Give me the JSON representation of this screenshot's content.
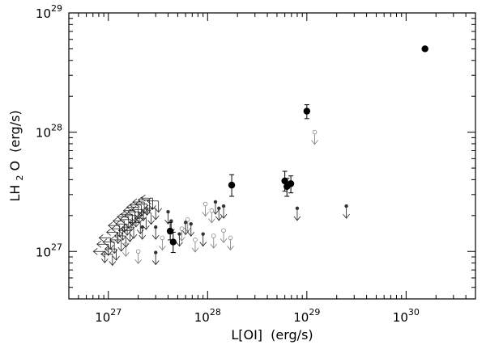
{
  "chart_data": {
    "type": "scatter",
    "xscale": "log",
    "yscale": "log",
    "xlim": [
      4e+26,
      5e+30
    ],
    "ylim": [
      4e+26,
      1e+29
    ],
    "xticks": [
      {
        "base": "10",
        "exp": "27",
        "value": 1e+27
      },
      {
        "base": "10",
        "exp": "28",
        "value": 1e+28
      },
      {
        "base": "10",
        "exp": "29",
        "value": 1e+29
      },
      {
        "base": "10",
        "exp": "30",
        "value": 1e+30
      }
    ],
    "yticks": [
      {
        "base": "10",
        "exp": "27",
        "value": 1e+27
      },
      {
        "base": "10",
        "exp": "28",
        "value": 1e+28
      },
      {
        "base": "10",
        "exp": "29",
        "value": 1e+29
      }
    ],
    "xlabel_main": "L[OI]",
    "xlabel_unit": "(erg/s)",
    "ylabel_main": "LH",
    "ylabel_sub": "2",
    "ylabel_main2": "O",
    "ylabel_unit": "(erg/s)",
    "colors": {
      "detection": "#000000",
      "upper_limit_black": "#333333",
      "upper_limit_gray": "#888888"
    },
    "detections": [
      {
        "x": 1.55e+30,
        "y": 5e+28
      },
      {
        "x": 1e+29,
        "y": 1.5e+28,
        "err": [
          1.3e+28,
          1.7e+28
        ]
      },
      {
        "x": 1.75e+28,
        "y": 3.6e+27,
        "err": [
          2.9e+27,
          4.4e+27
        ]
      },
      {
        "x": 6e+28,
        "y": 3.9e+27,
        "err": [
          3.2e+27,
          4.7e+27
        ]
      },
      {
        "x": 6.3e+28,
        "y": 3.5e+27,
        "err": [
          2.9e+27,
          4.1e+27
        ]
      },
      {
        "x": 6.9e+28,
        "y": 3.7e+27,
        "err": [
          3.1e+27,
          4.3e+27
        ]
      },
      {
        "x": 4.2e+27,
        "y": 1.48e+27,
        "err": [
          1.25e+27,
          1.75e+27
        ]
      },
      {
        "x": 4.5e+27,
        "y": 1.2e+27,
        "err": [
          9.8e+26,
          1.45e+27
        ]
      }
    ],
    "upper_limits_y": [
      {
        "x": 1.2e+29,
        "y": 1e+28,
        "marker": "open",
        "color": "gray"
      },
      {
        "x": 8e+28,
        "y": 2.3e+27,
        "marker": "filled",
        "color": "black"
      },
      {
        "x": 2.5e+29,
        "y": 2.4e+27,
        "marker": "filled",
        "color": "black"
      },
      {
        "x": 9.5e+27,
        "y": 2.5e+27,
        "marker": "open",
        "color": "gray"
      },
      {
        "x": 1.2e+28,
        "y": 2.6e+27,
        "marker": "filled",
        "color": "black"
      },
      {
        "x": 1.3e+28,
        "y": 2.3e+27,
        "marker": "filled",
        "color": "black"
      },
      {
        "x": 1.45e+28,
        "y": 2.4e+27,
        "marker": "filled",
        "color": "black"
      },
      {
        "x": 1.1e+28,
        "y": 2.2e+27,
        "marker": "open",
        "color": "gray"
      },
      {
        "x": 6.3e+27,
        "y": 1.85e+27,
        "marker": "open",
        "color": "gray"
      },
      {
        "x": 6.8e+27,
        "y": 1.7e+27,
        "marker": "filled",
        "color": "black"
      },
      {
        "x": 6e+27,
        "y": 1.75e+27,
        "marker": "filled",
        "color": "black"
      },
      {
        "x": 5.5e+27,
        "y": 1.55e+27,
        "marker": "open",
        "color": "gray"
      },
      {
        "x": 4e+27,
        "y": 2.15e+27,
        "marker": "filled",
        "color": "black"
      },
      {
        "x": 4.3e+27,
        "y": 1.8e+27,
        "marker": "filled",
        "color": "black"
      },
      {
        "x": 3e+27,
        "y": 1.6e+27,
        "marker": "filled",
        "color": "black"
      },
      {
        "x": 9e+27,
        "y": 1.4e+27,
        "marker": "filled",
        "color": "black"
      },
      {
        "x": 1.15e+28,
        "y": 1.35e+27,
        "marker": "open",
        "color": "gray"
      },
      {
        "x": 1.45e+28,
        "y": 1.5e+27,
        "marker": "open",
        "color": "gray"
      },
      {
        "x": 1.7e+28,
        "y": 1.3e+27,
        "marker": "open",
        "color": "gray"
      },
      {
        "x": 7.5e+27,
        "y": 1.25e+27,
        "marker": "open",
        "color": "gray"
      },
      {
        "x": 3e+27,
        "y": 9.8e+26,
        "marker": "filled",
        "color": "black"
      },
      {
        "x": 2e+27,
        "y": 1e+27,
        "marker": "open",
        "color": "gray"
      },
      {
        "x": 1.5e+27,
        "y": 1.15e+27,
        "marker": "open",
        "color": "gray"
      },
      {
        "x": 2.2e+27,
        "y": 1.6e+27,
        "marker": "filled",
        "color": "black"
      },
      {
        "x": 5.2e+27,
        "y": 1.4e+27,
        "marker": "filled",
        "color": "black"
      },
      {
        "x": 3.5e+27,
        "y": 1.3e+27,
        "marker": "open",
        "color": "gray"
      }
    ],
    "upper_limits_xy": [
      {
        "x": 9.2e+26,
        "y": 1e+27
      },
      {
        "x": 1e+27,
        "y": 1.15e+27
      },
      {
        "x": 1.05e+27,
        "y": 1.3e+27
      },
      {
        "x": 1.15e+27,
        "y": 1.2e+27
      },
      {
        "x": 1.25e+27,
        "y": 1.45e+27
      },
      {
        "x": 1.3e+27,
        "y": 1.65e+27
      },
      {
        "x": 1.4e+27,
        "y": 1.55e+27
      },
      {
        "x": 1.45e+27,
        "y": 1.8e+27
      },
      {
        "x": 1.55e+27,
        "y": 1.7e+27
      },
      {
        "x": 1.6e+27,
        "y": 1.95e+27
      },
      {
        "x": 1.7e+27,
        "y": 1.85e+27
      },
      {
        "x": 1.75e+27,
        "y": 2.05e+27
      },
      {
        "x": 1.85e+27,
        "y": 2.2e+27
      },
      {
        "x": 1.9e+27,
        "y": 2e+27
      },
      {
        "x": 2e+27,
        "y": 2.35e+27
      },
      {
        "x": 2.05e+27,
        "y": 2.15e+27
      },
      {
        "x": 2.15e+27,
        "y": 2.45e+27
      },
      {
        "x": 2.25e+27,
        "y": 2.25e+27
      },
      {
        "x": 2.3e+27,
        "y": 2.6e+27
      },
      {
        "x": 2.45e+27,
        "y": 2.5e+27
      },
      {
        "x": 2.6e+27,
        "y": 2.7e+27
      },
      {
        "x": 2.8e+27,
        "y": 2.8e+27
      },
      {
        "x": 1.2e+27,
        "y": 1.05e+27
      },
      {
        "x": 1.35e+27,
        "y": 1.25e+27
      },
      {
        "x": 1.5e+27,
        "y": 1.35e+27
      },
      {
        "x": 1.65e+27,
        "y": 1.5e+27
      },
      {
        "x": 1.8e+27,
        "y": 1.6e+27
      },
      {
        "x": 2.1e+27,
        "y": 1.75e+27
      },
      {
        "x": 2.4e+27,
        "y": 1.9e+27
      },
      {
        "x": 2.7e+27,
        "y": 2.1e+27
      },
      {
        "x": 3e+27,
        "y": 2.3e+27
      },
      {
        "x": 1.1e+27,
        "y": 9.5e+26
      },
      {
        "x": 3.2e+27,
        "y": 2.65e+27
      }
    ]
  }
}
